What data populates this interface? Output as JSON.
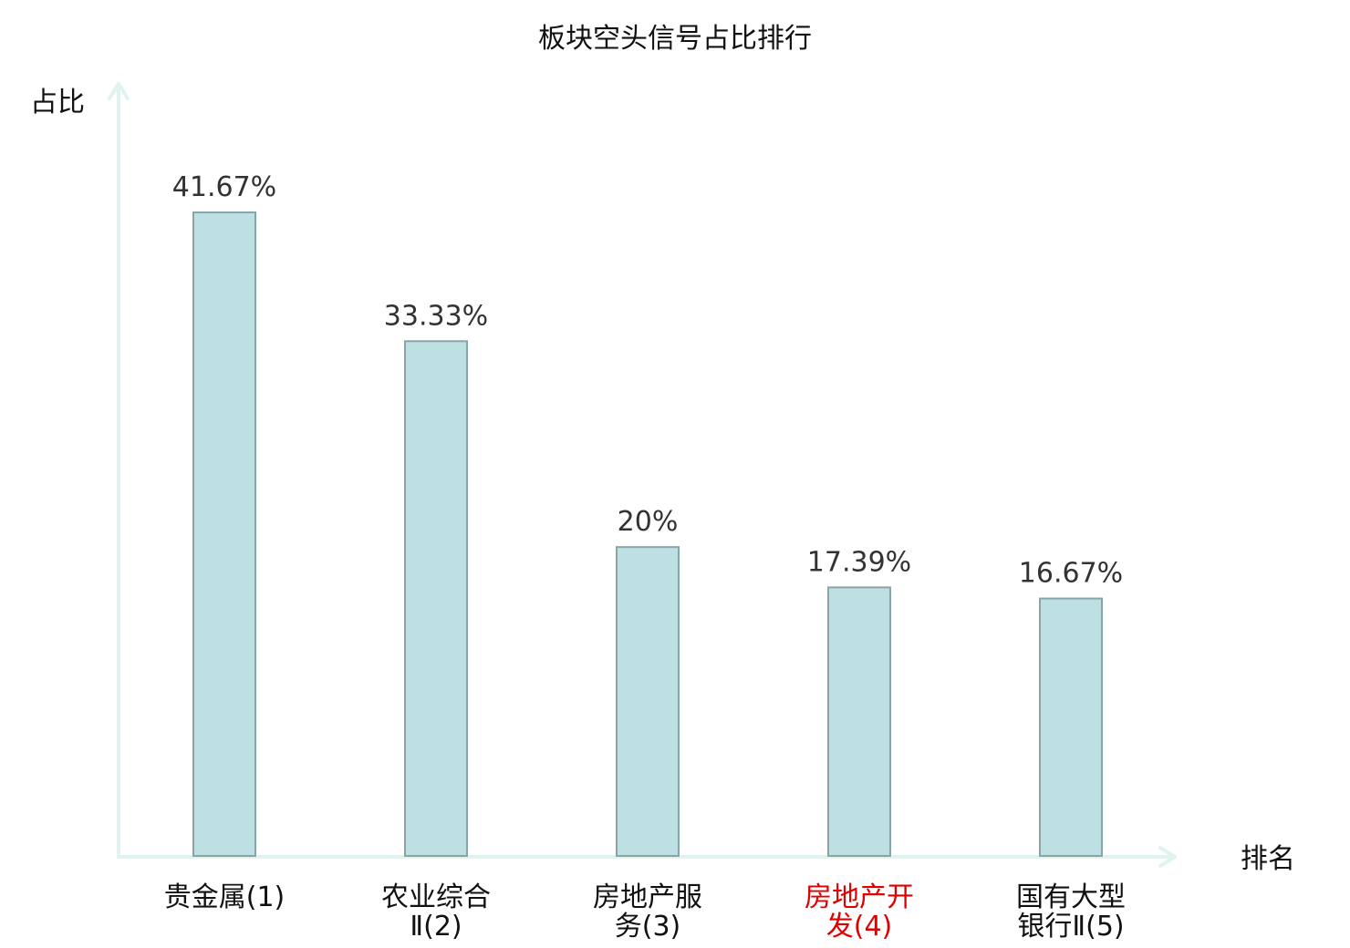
{
  "chart_data": {
    "type": "bar",
    "title": "板块空头信号占比排行",
    "xlabel": "排名",
    "ylabel": "占比",
    "categories": [
      [
        "贵金属(1)"
      ],
      [
        "农业综合",
        "Ⅱ(2)"
      ],
      [
        "房地产服",
        "务(3)"
      ],
      [
        "房地产开",
        "发(4)"
      ],
      [
        "国有大型",
        "银行Ⅱ(5)"
      ]
    ],
    "values": [
      41.67,
      33.33,
      20,
      17.39,
      16.67
    ],
    "value_labels": [
      "41.67%",
      "33.33%",
      "20%",
      "17.39%",
      "16.67%"
    ],
    "highlight_index": 3,
    "ylim": [
      0,
      50
    ],
    "grid": false,
    "legend": "none",
    "colors": {
      "bar_fill": "#bde0e2",
      "bar_stroke": "#8aa5a7",
      "axis": "#e0f3f1",
      "text": "#111111",
      "value_text": "#333333",
      "highlight": "#e00000"
    }
  }
}
